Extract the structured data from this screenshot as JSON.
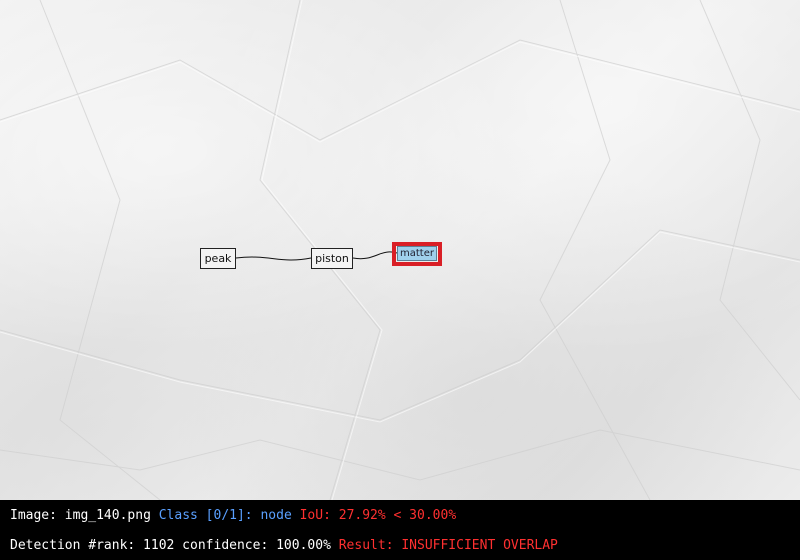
{
  "graph": {
    "nodes": [
      {
        "id": "peak",
        "label": "peak"
      },
      {
        "id": "piston",
        "label": "piston"
      },
      {
        "id": "matter",
        "label": "matter",
        "highlighted": true
      }
    ],
    "edges": [
      {
        "from": "peak",
        "to": "piston"
      },
      {
        "from": "piston",
        "to": "matter"
      }
    ],
    "highlight_color": "#d91f26",
    "selected_fill": "#9fd0ec"
  },
  "status": {
    "image_label": "Image:",
    "image_name": "img_140.png",
    "class_text": "Class [0/1]: node",
    "iou_text": "IoU: 27.92% < 30.00%",
    "rank_text": "Detection #rank: 1102 confidence: 100.00%",
    "result_text": "Result: INSUFFICIENT OVERLAP",
    "colors": {
      "text": "#ffffff",
      "class": "#5aa0ff",
      "fail": "#ff3030"
    }
  }
}
